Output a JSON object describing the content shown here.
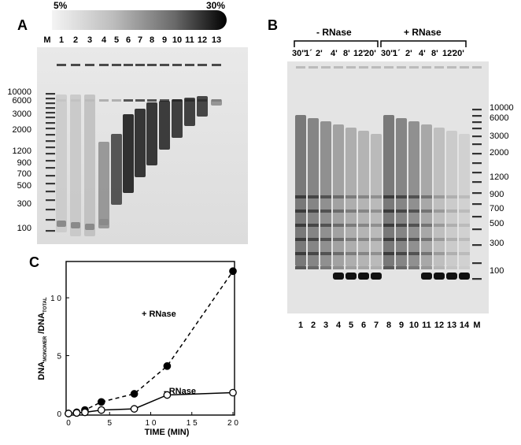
{
  "panels": {
    "a": {
      "letter": "A",
      "gradient": {
        "low": "5%",
        "high": "30%"
      },
      "lanes": [
        "M",
        "1",
        "2",
        "3",
        "4",
        "5",
        "6",
        "7",
        "8",
        "9",
        "10",
        "11",
        "12",
        "13"
      ],
      "ladder": [
        "10000",
        "6000",
        "3000",
        "2000",
        "1200",
        "900",
        "700",
        "500",
        "300",
        "100"
      ]
    },
    "b": {
      "letter": "B",
      "group_minus": "- RNase",
      "group_plus": "+ RNase",
      "times": [
        "30''",
        "1´",
        "2'",
        "4'",
        "8'",
        "12'",
        "20'",
        "30''",
        "1´",
        "2'",
        "4'",
        "8'",
        "12'",
        "20'"
      ],
      "lanes": [
        "1",
        "2",
        "3",
        "4",
        "5",
        "6",
        "7",
        "8",
        "9",
        "10",
        "11",
        "12",
        "13",
        "14",
        "M"
      ],
      "ladder": [
        "10000",
        "6000",
        "3000",
        "2000",
        "1200",
        "900",
        "700",
        "500",
        "300",
        "100"
      ]
    },
    "c": {
      "letter": "C"
    }
  },
  "chart_data": {
    "type": "line",
    "xlabel": "TIME (MIN)",
    "ylabel_main": "DNA",
    "ylabel_sub1": "MONOMER",
    "ylabel_mid": " /DNA",
    "ylabel_sub2": "TOTAL",
    "xlim": [
      0,
      20
    ],
    "ylim": [
      0,
      13
    ],
    "xticks": [
      "0",
      "5",
      "1 0",
      "1 5",
      "2 0"
    ],
    "yticks": [
      "0",
      "5",
      "1 0"
    ],
    "series": [
      {
        "name": "+ RNase",
        "style": "dashed",
        "marker": "filled",
        "x": [
          0,
          1,
          2,
          4,
          8,
          12,
          20
        ],
        "y": [
          0,
          0.1,
          0.3,
          1.0,
          1.7,
          4.1,
          12.3
        ]
      },
      {
        "name": "- RNase",
        "style": "solid",
        "marker": "open",
        "x": [
          0,
          1,
          2,
          4,
          8,
          12,
          20
        ],
        "y": [
          0,
          0.05,
          0.1,
          0.3,
          0.4,
          1.6,
          1.8
        ]
      }
    ]
  }
}
